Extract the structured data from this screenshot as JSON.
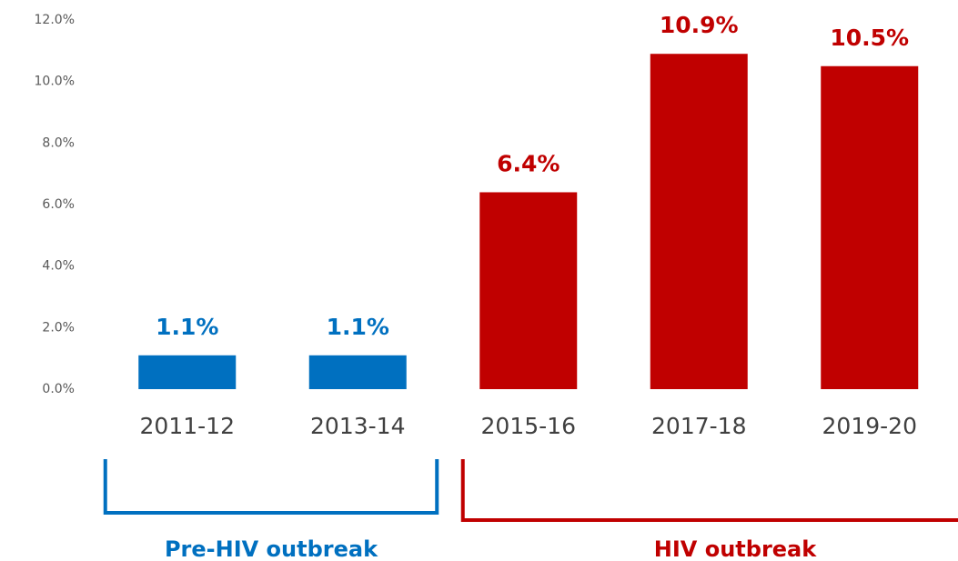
{
  "chart_data": {
    "type": "bar",
    "categories": [
      "2011-12",
      "2013-14",
      "2015-16",
      "2017-18",
      "2019-20"
    ],
    "values": [
      1.1,
      1.1,
      6.4,
      10.9,
      10.5
    ],
    "value_labels": [
      "1.1%",
      "1.1%",
      "6.4%",
      "10.9%",
      "10.5%"
    ],
    "colors": [
      "#0070c0",
      "#0070c0",
      "#c00000",
      "#c00000",
      "#c00000"
    ],
    "ylim": [
      0,
      12
    ],
    "yticks": [
      {
        "value": 0,
        "label": "0.0%"
      },
      {
        "value": 2,
        "label": "2.0%"
      },
      {
        "value": 4,
        "label": "4.0%"
      },
      {
        "value": 6,
        "label": "6.0%"
      },
      {
        "value": 8,
        "label": "8.0%"
      },
      {
        "value": 10,
        "label": "10.0%"
      },
      {
        "value": 12,
        "label": "12.0%"
      }
    ],
    "grid": false,
    "groups": [
      {
        "label": "Pre-HIV outbreak",
        "color": "#0070c0",
        "categories": [
          "2011-12",
          "2013-14"
        ]
      },
      {
        "label": "HIV outbreak",
        "color": "#c00000",
        "categories": [
          "2015-16",
          "2017-18",
          "2019-20"
        ]
      }
    ]
  }
}
